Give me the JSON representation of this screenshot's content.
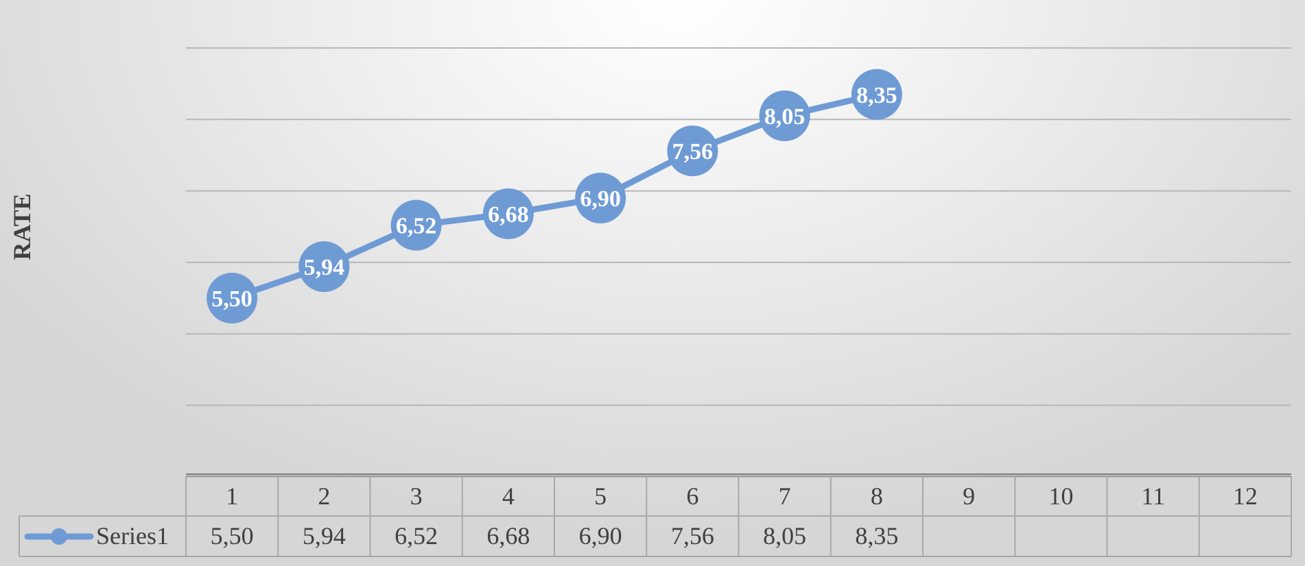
{
  "chart_data": {
    "type": "line",
    "ylabel": "RATE",
    "xlabel": "",
    "categories": [
      "1",
      "2",
      "3",
      "4",
      "5",
      "6",
      "7",
      "8",
      "9",
      "10",
      "11",
      "12"
    ],
    "series": [
      {
        "name": "Series1",
        "values": [
          5.5,
          5.94,
          6.52,
          6.68,
          6.9,
          7.56,
          8.05,
          8.35,
          null,
          null,
          null,
          null
        ],
        "labels": [
          "5,50",
          "5,94",
          "6,52",
          "6,68",
          "6,90",
          "7,56",
          "8,05",
          "8,35",
          "",
          "",
          "",
          ""
        ],
        "color": "#6f9bd5"
      }
    ],
    "ylim": [
      2.5,
      9
    ],
    "y_gridlines": [
      3,
      4,
      5,
      6,
      7,
      8,
      9
    ],
    "y_tick_labels_shown": false,
    "grid": true,
    "data_table": true,
    "legend": "data-table"
  }
}
